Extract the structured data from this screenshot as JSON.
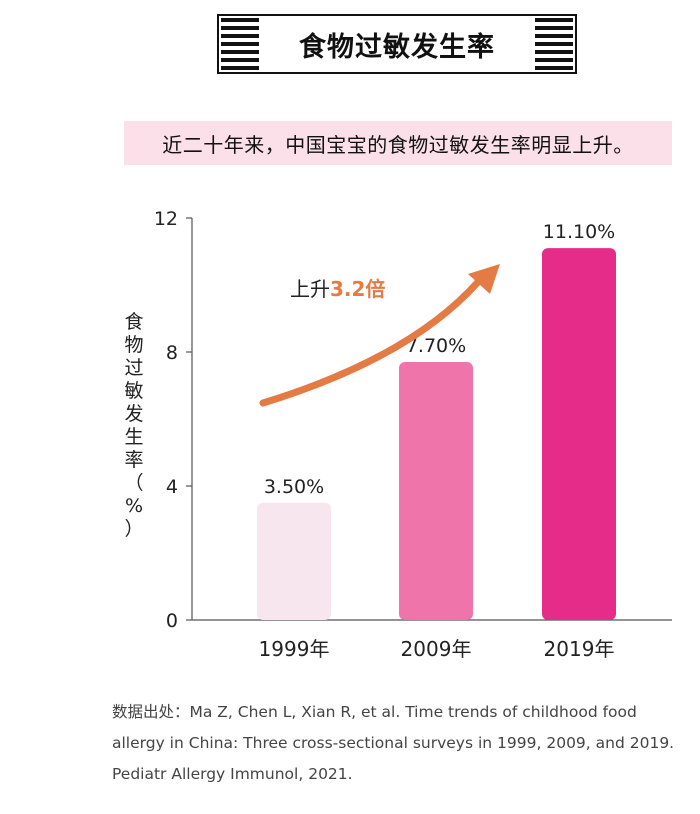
{
  "title": "食物过敏发生率",
  "subtitle": "近二十年来，中国宝宝的食物过敏发生率明显上升。",
  "annotation": {
    "prefix": "上升",
    "highlight": "3.2倍",
    "color": "#e47a44"
  },
  "source_lines": [
    "数据出处：Ma Z, Chen L, Xian R, et al. Time trends of childhood food",
    "allergy in China: Three cross-sectional surveys in 1999, 2009, and 2019.",
    "Pediatr Allergy Immunol, 2021."
  ],
  "chart_data": {
    "type": "bar",
    "title": "",
    "xlabel": "",
    "ylabel": "食物过敏发生率（%）",
    "categories": [
      "1999年",
      "2009年",
      "2019年"
    ],
    "values": [
      3.5,
      7.7,
      11.1
    ],
    "data_labels": [
      "3.50%",
      "7.70%",
      "11.10%"
    ],
    "bar_colors": [
      "#f8e6ef",
      "#ee74a9",
      "#e42c88"
    ],
    "ylim": [
      0,
      12
    ],
    "yticks": [
      0,
      4,
      8,
      12
    ],
    "grid": false
  }
}
